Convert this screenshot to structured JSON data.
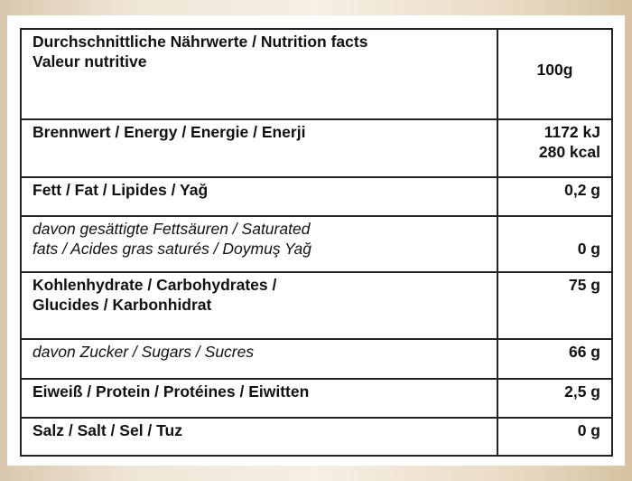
{
  "header": {
    "title_line1": "Durchschnittliche Nährwerte / Nutrition facts",
    "title_line2": "Valeur nutritive",
    "per": "100g"
  },
  "rows": [
    {
      "label": "Brennwert / Energy / Energie / Enerji",
      "value": "1172 kJ",
      "value2": "280 kcal"
    },
    {
      "label": "Fett / Fat / Lipides / Yağ",
      "value": "0,2 g"
    },
    {
      "label": "davon gesättigte Fettsäuren / Saturated",
      "label2": "fats / Acides gras saturés / Doymuş Yağ",
      "value": "0 g"
    },
    {
      "label": "Kohlenhydrate / Carbohydrates /",
      "label2": "Glucides / Karbonhidrat",
      "value": "75 g"
    },
    {
      "label": "davon Zucker / Sugars / Sucres",
      "value": "66 g"
    },
    {
      "label": "Eiweiß / Protein / Protéines / Eiwitten",
      "value": "2,5 g"
    },
    {
      "label": "Salz / Salt / Sel / Tuz",
      "value": "0 g"
    }
  ]
}
